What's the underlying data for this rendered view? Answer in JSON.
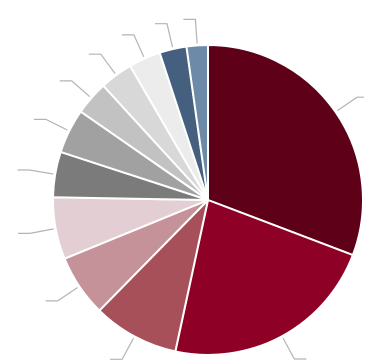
{
  "chart_data": {
    "type": "pie",
    "title": "",
    "start_angle_deg": 0,
    "direction": "clockwise",
    "slices": [
      {
        "value": 30.5,
        "color": "#5e0018"
      },
      {
        "value": 22.4,
        "color": "#8e0026"
      },
      {
        "value": 8.9,
        "color": "#a8505a"
      },
      {
        "value": 6.4,
        "color": "#c49298"
      },
      {
        "value": 6.4,
        "color": "#e3cfd3"
      },
      {
        "value": 4.7,
        "color": "#7b7b7b"
      },
      {
        "value": 4.6,
        "color": "#a1a1a1"
      },
      {
        "value": 3.5,
        "color": "#c2c2c2"
      },
      {
        "value": 3.4,
        "color": "#d8d8d8"
      },
      {
        "value": 3.3,
        "color": "#ececec"
      },
      {
        "value": 2.8,
        "color": "#44607e"
      },
      {
        "value": 2.2,
        "color": "#6d8aa8"
      }
    ],
    "leader_lines": true
  }
}
